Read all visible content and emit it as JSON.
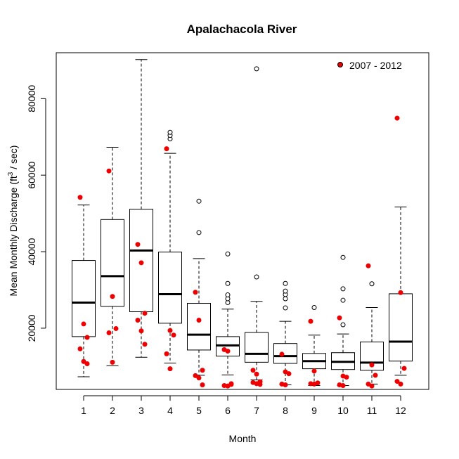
{
  "chart_data": {
    "type": "boxplot",
    "title": "Apalachacola River",
    "xlabel": "Month",
    "ylabel_main": "Mean Monthly Discharge (ft",
    "ylabel_sup": "3",
    "ylabel_tail": " / sec)",
    "ylim": [
      4000,
      92000
    ],
    "yticks": [
      20000,
      40000,
      60000,
      80000
    ],
    "categories": [
      "1",
      "2",
      "3",
      "4",
      "5",
      "6",
      "7",
      "8",
      "9",
      "10",
      "11",
      "12"
    ],
    "boxes": [
      {
        "month": "1",
        "whisker_low": 7300,
        "q1": 17800,
        "median": 26700,
        "q3": 37700,
        "whisker_high": 52200,
        "outliers": []
      },
      {
        "month": "2",
        "whisker_low": 10200,
        "q1": 25700,
        "median": 33600,
        "q3": 48400,
        "whisker_high": 67300,
        "outliers": []
      },
      {
        "month": "3",
        "whisker_low": 12400,
        "q1": 24300,
        "median": 40300,
        "q3": 51100,
        "whisker_high": 90200,
        "outliers": []
      },
      {
        "month": "4",
        "whisker_low": 10900,
        "q1": 21300,
        "median": 28900,
        "q3": 39900,
        "whisker_high": 65700,
        "outliers": [
          69500,
          70400,
          71200
        ]
      },
      {
        "month": "5",
        "whisker_low": 7700,
        "q1": 14300,
        "median": 18300,
        "q3": 26500,
        "whisker_high": 38200,
        "outliers": [
          45000,
          53200
        ]
      },
      {
        "month": "6",
        "whisker_low": 7800,
        "q1": 12700,
        "median": 15500,
        "q3": 17800,
        "whisker_high": 25000,
        "outliers": [
          26700,
          27700,
          28700,
          31700,
          39400
        ]
      },
      {
        "month": "7",
        "whisker_low": 6500,
        "q1": 11100,
        "median": 13300,
        "q3": 18900,
        "whisker_high": 27000,
        "outliers": [
          33400,
          87800
        ]
      },
      {
        "month": "8",
        "whisker_low": 5200,
        "q1": 10800,
        "median": 12700,
        "q3": 16000,
        "whisker_high": 21800,
        "outliers": [
          25300,
          27700,
          28800,
          29700,
          31700
        ]
      },
      {
        "month": "9",
        "whisker_low": 5000,
        "q1": 9400,
        "median": 11400,
        "q3": 13400,
        "whisker_high": 18200,
        "outliers": [
          25400
        ]
      },
      {
        "month": "10",
        "whisker_low": 5000,
        "q1": 9200,
        "median": 11200,
        "q3": 13600,
        "whisker_high": 18500,
        "outliers": [
          20900,
          27300,
          30300,
          38500
        ]
      },
      {
        "month": "11",
        "whisker_low": 5400,
        "q1": 9000,
        "median": 11000,
        "q3": 16400,
        "whisker_high": 25400,
        "outliers": [
          31600
        ]
      },
      {
        "month": "12",
        "whisker_low": 7700,
        "q1": 11400,
        "median": 16500,
        "q3": 29000,
        "whisker_high": 51700,
        "outliers": []
      }
    ],
    "series": [
      {
        "name": "2007 - 2012",
        "color": "#ee0000",
        "points": [
          {
            "x": "1",
            "y": [
              54200,
              21100,
              17600,
              14600,
              11300,
              10700
            ]
          },
          {
            "x": "2",
            "y": [
              61100,
              28300,
              19900,
              18800,
              11100
            ]
          },
          {
            "x": "3",
            "y": [
              41900,
              37100,
              23900,
              22100,
              19300,
              15800
            ]
          },
          {
            "x": "4",
            "y": [
              66900,
              19400,
              18200,
              13300,
              9400
            ]
          },
          {
            "x": "5",
            "y": [
              29400,
              22100,
              9000,
              7600,
              7000,
              5200
            ]
          },
          {
            "x": "6",
            "y": [
              14400,
              14000,
              5500,
              5000,
              4900,
              5300
            ]
          },
          {
            "x": "7",
            "y": [
              9000,
              8000,
              6000,
              5800,
              5500,
              5300
            ]
          },
          {
            "x": "8",
            "y": [
              13200,
              8600,
              8100,
              5400,
              5200
            ]
          },
          {
            "x": "9",
            "y": [
              21800,
              8800,
              5700,
              5500,
              5400
            ]
          },
          {
            "x": "10",
            "y": [
              22700,
              7500,
              7200,
              5200,
              5000
            ]
          },
          {
            "x": "11",
            "y": [
              36300,
              10400,
              7700,
              5400,
              4900
            ]
          },
          {
            "x": "12",
            "y": [
              74900,
              29300,
              9500,
              6100,
              5400
            ]
          }
        ]
      }
    ],
    "legend_position": "top-right",
    "box_fill": "#ffffff",
    "outlier_style": "open-circle",
    "grid": false
  }
}
